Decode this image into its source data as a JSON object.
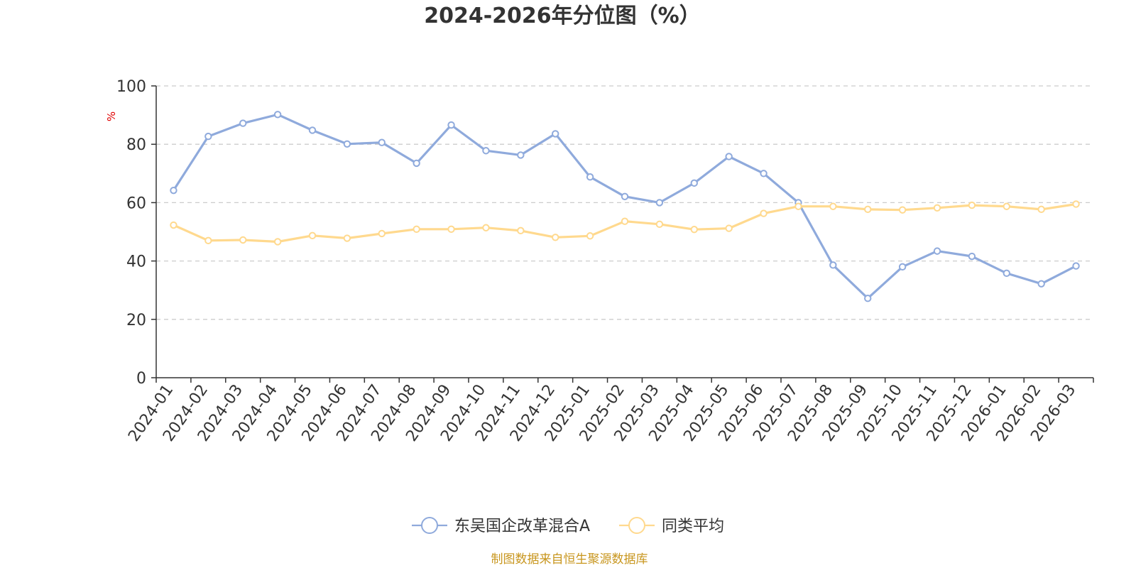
{
  "chart_data": {
    "type": "line",
    "title": "2024-2026年分位图（%）",
    "ylabel": "%",
    "xlabel": "",
    "ylim": [
      0,
      100
    ],
    "yticks": [
      0,
      20,
      40,
      60,
      80,
      100
    ],
    "grid": true,
    "legend_position": "bottom-center",
    "categories": [
      "2024-01",
      "2024-02",
      "2024-03",
      "2024-04",
      "2024-05",
      "2024-06",
      "2024-07",
      "2024-08",
      "2024-09",
      "2024-10",
      "2024-11",
      "2024-12",
      "2025-01",
      "2025-02",
      "2025-03",
      "2025-04",
      "2025-05",
      "2025-06",
      "2025-07",
      "2025-08",
      "2025-09",
      "2025-10",
      "2025-11",
      "2025-12",
      "2026-01",
      "2026-02",
      "2026-03"
    ],
    "series": [
      {
        "name": "东吴国企改革混合A",
        "color": "#8faadc",
        "values": [
          64.2,
          82.7,
          87.2,
          90.2,
          84.8,
          80.1,
          80.6,
          73.5,
          86.6,
          77.8,
          76.3,
          83.6,
          68.8,
          62.1,
          60.0,
          66.7,
          75.8,
          70.0,
          60.0,
          38.6,
          27.2,
          38.0,
          43.4,
          41.6,
          35.8,
          32.2,
          38.3
        ]
      },
      {
        "name": "同类平均",
        "color": "#ffd98e",
        "values": [
          52.3,
          47.0,
          47.2,
          46.6,
          48.7,
          47.8,
          49.4,
          50.9,
          50.9,
          51.4,
          50.4,
          48.1,
          48.6,
          53.6,
          52.6,
          50.8,
          51.2,
          56.3,
          58.7,
          58.7,
          57.7,
          57.5,
          58.2,
          59.1,
          58.7,
          57.7,
          59.5
        ]
      }
    ]
  },
  "footer": {
    "source": "制图数据来自恒生聚源数据库"
  }
}
